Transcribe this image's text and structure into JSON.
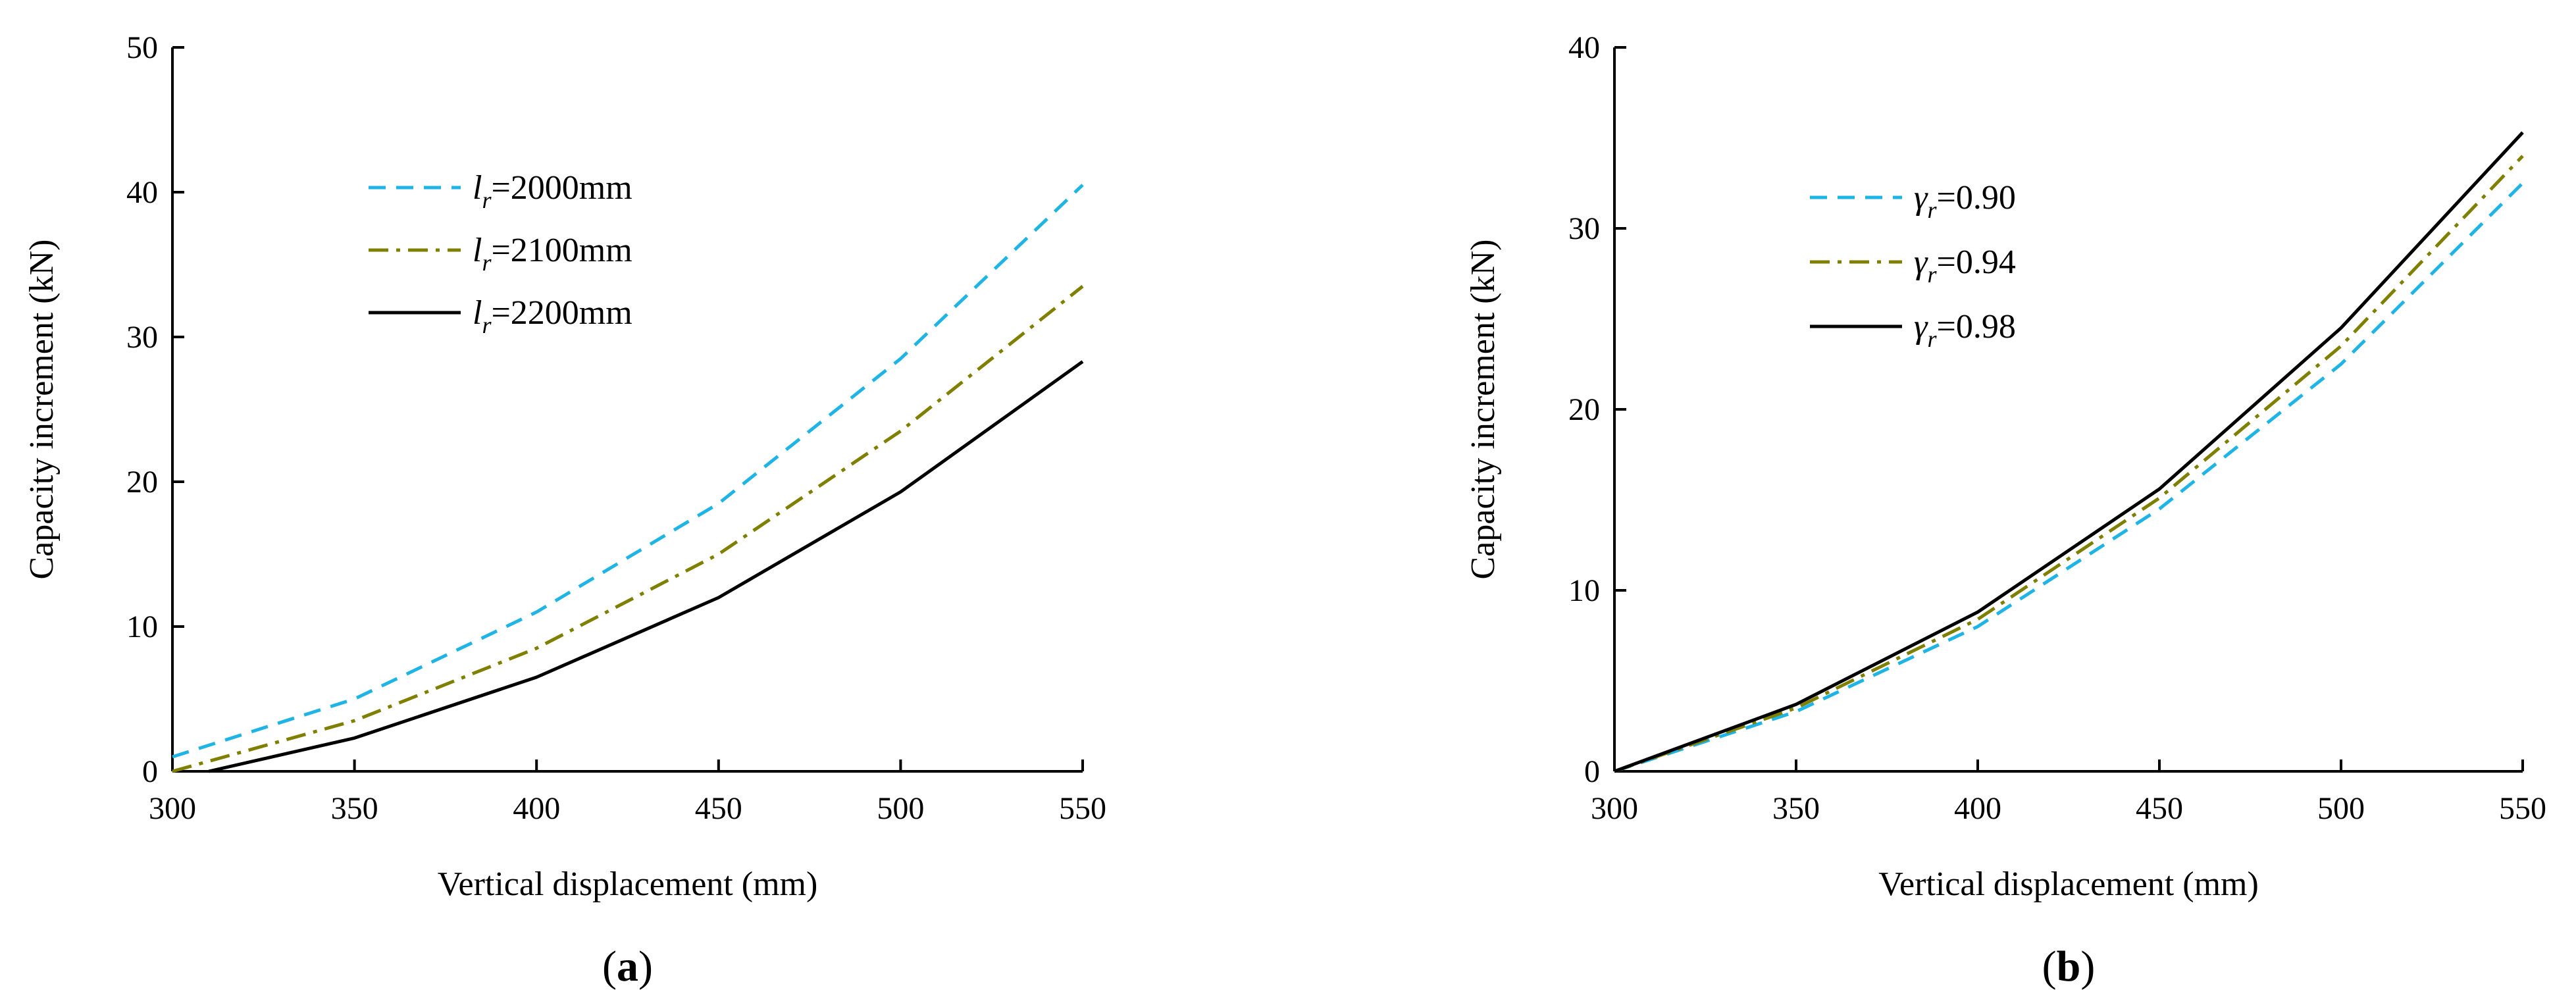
{
  "chart_data": [
    {
      "type": "line",
      "panel_label": "a",
      "title": "",
      "xlabel": "Vertical displacement (mm)",
      "ylabel": "Capacity increment (kN)",
      "xlim": [
        300,
        550
      ],
      "ylim": [
        0,
        50
      ],
      "xticks": [
        300,
        350,
        400,
        450,
        500,
        550
      ],
      "yticks": [
        0,
        10,
        20,
        30,
        40,
        50
      ],
      "grid": false,
      "legend_position": "upper-center",
      "series": [
        {
          "name_symbol": "l",
          "name_subscript": "r",
          "name_rest": "=2000mm",
          "color": "#1EB4E6",
          "dash": "dashed",
          "x": [
            300,
            350,
            400,
            450,
            500,
            550
          ],
          "values": [
            1.0,
            5.0,
            11.0,
            18.5,
            28.5,
            40.5
          ]
        },
        {
          "name_symbol": "l",
          "name_subscript": "r",
          "name_rest": "=2100mm",
          "color": "#7F7F00",
          "dash": "dashdot",
          "x": [
            300,
            350,
            400,
            450,
            500,
            550
          ],
          "values": [
            0.0,
            3.5,
            8.5,
            15.0,
            23.5,
            33.5
          ]
        },
        {
          "name_symbol": "l",
          "name_subscript": "r",
          "name_rest": "=2200mm",
          "color": "#000000",
          "dash": "solid",
          "x": [
            310,
            350,
            400,
            450,
            500,
            550
          ],
          "values": [
            0.0,
            2.3,
            6.5,
            12.0,
            19.3,
            28.3
          ]
        }
      ]
    },
    {
      "type": "line",
      "panel_label": "b",
      "title": "",
      "xlabel": "Vertical displacement (mm)",
      "ylabel": "Capacity increment (kN)",
      "xlim": [
        300,
        550
      ],
      "ylim": [
        0,
        40
      ],
      "xticks": [
        300,
        350,
        400,
        450,
        500,
        550
      ],
      "yticks": [
        0,
        10,
        20,
        30,
        40
      ],
      "grid": false,
      "legend_position": "upper-center",
      "series": [
        {
          "name_symbol": "γ",
          "name_subscript": "r",
          "name_rest": "=0.90",
          "color": "#1EB4E6",
          "dash": "dashed",
          "x": [
            300,
            350,
            400,
            450,
            500,
            550
          ],
          "values": [
            0.0,
            3.3,
            8.0,
            14.5,
            22.5,
            32.5
          ]
        },
        {
          "name_symbol": "γ",
          "name_subscript": "r",
          "name_rest": "=0.94",
          "color": "#7F7F00",
          "dash": "dashdot",
          "x": [
            300,
            350,
            400,
            450,
            500,
            550
          ],
          "values": [
            0.0,
            3.5,
            8.4,
            15.1,
            23.5,
            34.0
          ]
        },
        {
          "name_symbol": "γ",
          "name_subscript": "r",
          "name_rest": "=0.98",
          "color": "#000000",
          "dash": "solid",
          "x": [
            300,
            350,
            400,
            450,
            500,
            550
          ],
          "values": [
            0.0,
            3.7,
            8.8,
            15.6,
            24.5,
            35.3
          ]
        }
      ]
    }
  ]
}
